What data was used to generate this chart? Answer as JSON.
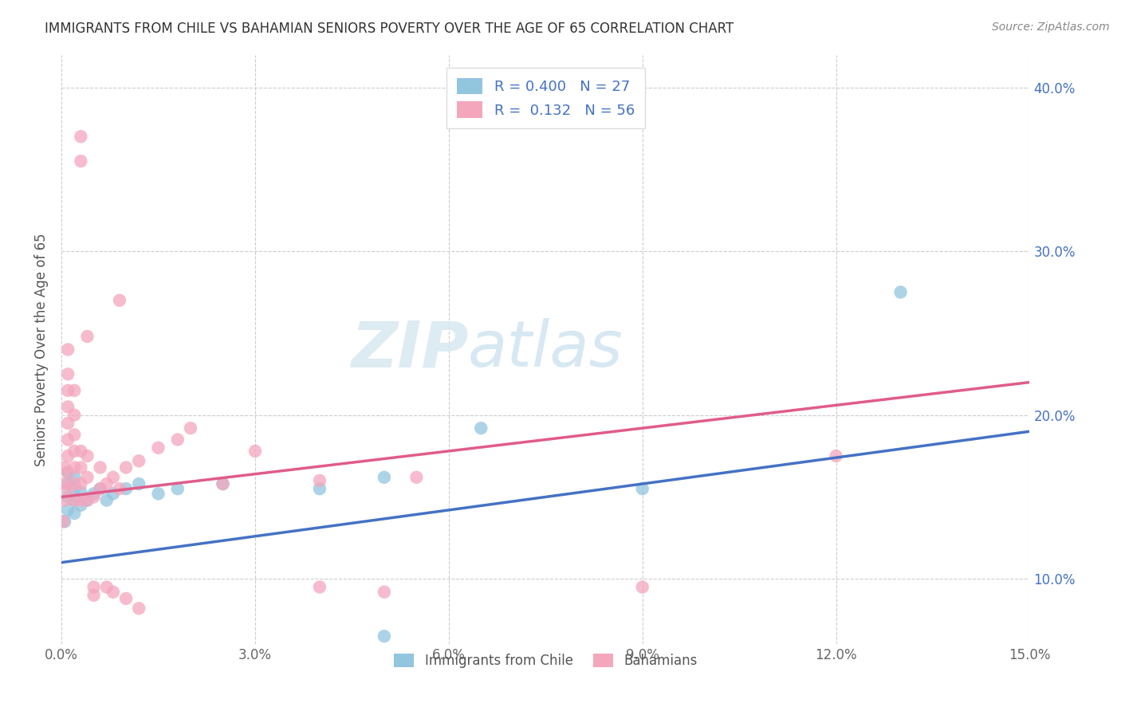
{
  "title": "IMMIGRANTS FROM CHILE VS BAHAMIAN SENIORS POVERTY OVER THE AGE OF 65 CORRELATION CHART",
  "source": "Source: ZipAtlas.com",
  "ylabel": "Seniors Poverty Over the Age of 65",
  "xlim": [
    0.0,
    0.15
  ],
  "ylim": [
    0.06,
    0.42
  ],
  "xticks": [
    0.0,
    0.03,
    0.06,
    0.09,
    0.12,
    0.15
  ],
  "xtick_labels": [
    "0.0%",
    "3.0%",
    "6.0%",
    "9.0%",
    "12.0%",
    "15.0%"
  ],
  "yticks": [
    0.1,
    0.2,
    0.3,
    0.4
  ],
  "ytick_labels": [
    "10.0%",
    "20.0%",
    "30.0%",
    "40.0%"
  ],
  "legend_labels_bottom": [
    "Immigrants from Chile",
    "Bahamians"
  ],
  "R_chile": 0.4,
  "N_chile": 27,
  "R_bahamian": 0.132,
  "N_bahamian": 56,
  "blue_color": "#92c5de",
  "pink_color": "#f4a6bd",
  "blue_line_color": "#4472c4",
  "pink_line_color": "#e05c8a",
  "watermark_zip": "ZIP",
  "watermark_atlas": "atlas",
  "title_color": "#333333",
  "legend_R_color": "#4472c4",
  "chile_points": [
    [
      0.0005,
      0.135
    ],
    [
      0.001,
      0.142
    ],
    [
      0.001,
      0.15
    ],
    [
      0.001,
      0.158
    ],
    [
      0.001,
      0.165
    ],
    [
      0.002,
      0.14
    ],
    [
      0.002,
      0.148
    ],
    [
      0.002,
      0.155
    ],
    [
      0.002,
      0.162
    ],
    [
      0.003,
      0.145
    ],
    [
      0.003,
      0.153
    ],
    [
      0.004,
      0.148
    ],
    [
      0.005,
      0.152
    ],
    [
      0.006,
      0.155
    ],
    [
      0.007,
      0.148
    ],
    [
      0.008,
      0.152
    ],
    [
      0.01,
      0.155
    ],
    [
      0.012,
      0.158
    ],
    [
      0.015,
      0.152
    ],
    [
      0.018,
      0.155
    ],
    [
      0.025,
      0.158
    ],
    [
      0.04,
      0.155
    ],
    [
      0.05,
      0.162
    ],
    [
      0.065,
      0.192
    ],
    [
      0.09,
      0.155
    ],
    [
      0.13,
      0.275
    ],
    [
      0.05,
      0.065
    ]
  ],
  "bahamian_points": [
    [
      0.0003,
      0.135
    ],
    [
      0.0005,
      0.148
    ],
    [
      0.0005,
      0.158
    ],
    [
      0.0005,
      0.168
    ],
    [
      0.001,
      0.155
    ],
    [
      0.001,
      0.165
    ],
    [
      0.001,
      0.175
    ],
    [
      0.001,
      0.185
    ],
    [
      0.001,
      0.195
    ],
    [
      0.001,
      0.205
    ],
    [
      0.001,
      0.215
    ],
    [
      0.001,
      0.225
    ],
    [
      0.001,
      0.24
    ],
    [
      0.002,
      0.148
    ],
    [
      0.002,
      0.158
    ],
    [
      0.002,
      0.168
    ],
    [
      0.002,
      0.178
    ],
    [
      0.002,
      0.188
    ],
    [
      0.002,
      0.2
    ],
    [
      0.002,
      0.215
    ],
    [
      0.003,
      0.148
    ],
    [
      0.003,
      0.158
    ],
    [
      0.003,
      0.168
    ],
    [
      0.003,
      0.178
    ],
    [
      0.003,
      0.355
    ],
    [
      0.003,
      0.37
    ],
    [
      0.004,
      0.148
    ],
    [
      0.004,
      0.162
    ],
    [
      0.004,
      0.175
    ],
    [
      0.004,
      0.248
    ],
    [
      0.005,
      0.15
    ],
    [
      0.005,
      0.09
    ],
    [
      0.005,
      0.095
    ],
    [
      0.006,
      0.155
    ],
    [
      0.006,
      0.168
    ],
    [
      0.007,
      0.158
    ],
    [
      0.007,
      0.095
    ],
    [
      0.008,
      0.162
    ],
    [
      0.008,
      0.092
    ],
    [
      0.009,
      0.155
    ],
    [
      0.009,
      0.27
    ],
    [
      0.01,
      0.168
    ],
    [
      0.01,
      0.088
    ],
    [
      0.012,
      0.172
    ],
    [
      0.012,
      0.082
    ],
    [
      0.015,
      0.18
    ],
    [
      0.018,
      0.185
    ],
    [
      0.02,
      0.192
    ],
    [
      0.025,
      0.158
    ],
    [
      0.03,
      0.178
    ],
    [
      0.04,
      0.16
    ],
    [
      0.04,
      0.095
    ],
    [
      0.05,
      0.092
    ],
    [
      0.055,
      0.162
    ],
    [
      0.09,
      0.095
    ],
    [
      0.12,
      0.175
    ]
  ],
  "background_color": "#ffffff",
  "grid_color": "#cccccc"
}
